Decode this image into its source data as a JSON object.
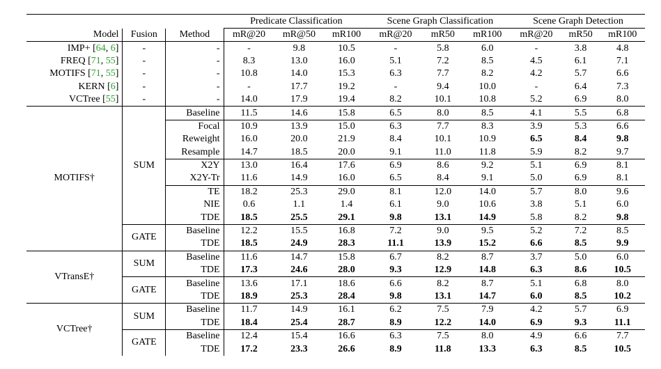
{
  "header": {
    "groups": [
      "Predicate Classification",
      "Scene Graph Classification",
      "Scene Graph Detection"
    ],
    "columns": [
      "Model",
      "Fusion",
      "Method",
      "mR@20",
      "mR@50",
      "mR100",
      "mR@20",
      "mR50",
      "mR100",
      "mR@20",
      "mR50",
      "mR100"
    ]
  },
  "baselines": [
    {
      "model": "IMP+ [64, 6]",
      "fusion": "-",
      "method": "-",
      "values": [
        "-",
        "9.8",
        "10.5",
        "-",
        "5.8",
        "6.0",
        "-",
        "3.8",
        "4.8"
      ]
    },
    {
      "model": "FREQ [71, 55]",
      "fusion": "-",
      "method": "-",
      "values": [
        "8.3",
        "13.0",
        "16.0",
        "5.1",
        "7.2",
        "8.5",
        "4.5",
        "6.1",
        "7.1"
      ]
    },
    {
      "model": "MOTIFS [71, 55]",
      "fusion": "-",
      "method": "-",
      "values": [
        "10.8",
        "14.0",
        "15.3",
        "6.3",
        "7.7",
        "8.2",
        "4.2",
        "5.7",
        "6.6"
      ]
    },
    {
      "model": "KERN [6]",
      "fusion": "-",
      "method": "-",
      "values": [
        "-",
        "17.7",
        "19.2",
        "-",
        "9.4",
        "10.0",
        "-",
        "6.4",
        "7.3"
      ]
    },
    {
      "model": "VCTree [55]",
      "fusion": "-",
      "method": "-",
      "values": [
        "14.0",
        "17.9",
        "19.4",
        "8.2",
        "10.1",
        "10.8",
        "5.2",
        "6.9",
        "8.0"
      ]
    }
  ],
  "groups": [
    {
      "model": "MOTIFS†",
      "fusions": [
        {
          "fusion": "SUM",
          "blocks": [
            [
              {
                "method": "Baseline",
                "values": [
                  "11.5",
                  "14.6",
                  "15.8",
                  "6.5",
                  "8.0",
                  "8.5",
                  "4.1",
                  "5.5",
                  "6.8"
                ],
                "bold": []
              }
            ],
            [
              {
                "method": "Focal",
                "values": [
                  "10.9",
                  "13.9",
                  "15.0",
                  "6.3",
                  "7.7",
                  "8.3",
                  "3.9",
                  "5.3",
                  "6.6"
                ],
                "bold": []
              },
              {
                "method": "Reweight",
                "values": [
                  "16.0",
                  "20.0",
                  "21.9",
                  "8.4",
                  "10.1",
                  "10.9",
                  "6.5",
                  "8.4",
                  "9.8"
                ],
                "bold": [
                  6,
                  7,
                  8
                ]
              },
              {
                "method": "Resample",
                "values": [
                  "14.7",
                  "18.5",
                  "20.0",
                  "9.1",
                  "11.0",
                  "11.8",
                  "5.9",
                  "8.2",
                  "9.7"
                ],
                "bold": []
              }
            ],
            [
              {
                "method": "X2Y",
                "values": [
                  "13.0",
                  "16.4",
                  "17.6",
                  "6.9",
                  "8.6",
                  "9.2",
                  "5.1",
                  "6.9",
                  "8.1"
                ],
                "bold": []
              },
              {
                "method": "X2Y-Tr",
                "values": [
                  "11.6",
                  "14.9",
                  "16.0",
                  "6.5",
                  "8.4",
                  "9.1",
                  "5.0",
                  "6.9",
                  "8.1"
                ],
                "bold": []
              }
            ],
            [
              {
                "method": "TE",
                "values": [
                  "18.2",
                  "25.3",
                  "29.0",
                  "8.1",
                  "12.0",
                  "14.0",
                  "5.7",
                  "8.0",
                  "9.6"
                ],
                "bold": []
              },
              {
                "method": "NIE",
                "values": [
                  "0.6",
                  "1.1",
                  "1.4",
                  "6.1",
                  "9.0",
                  "10.6",
                  "3.8",
                  "5.1",
                  "6.0"
                ],
                "bold": []
              },
              {
                "method": "TDE",
                "values": [
                  "18.5",
                  "25.5",
                  "29.1",
                  "9.8",
                  "13.1",
                  "14.9",
                  "5.8",
                  "8.2",
                  "9.8"
                ],
                "bold": [
                  0,
                  1,
                  2,
                  3,
                  4,
                  5,
                  8
                ]
              }
            ]
          ]
        },
        {
          "fusion": "GATE",
          "blocks": [
            [
              {
                "method": "Baseline",
                "values": [
                  "12.2",
                  "15.5",
                  "16.8",
                  "7.2",
                  "9.0",
                  "9.5",
                  "5.2",
                  "7.2",
                  "8.5"
                ],
                "bold": []
              },
              {
                "method": "TDE",
                "values": [
                  "18.5",
                  "24.9",
                  "28.3",
                  "11.1",
                  "13.9",
                  "15.2",
                  "6.6",
                  "8.5",
                  "9.9"
                ],
                "bold": [
                  0,
                  1,
                  2,
                  3,
                  4,
                  5,
                  6,
                  7,
                  8
                ]
              }
            ]
          ]
        }
      ]
    },
    {
      "model": "VTransE†",
      "fusions": [
        {
          "fusion": "SUM",
          "blocks": [
            [
              {
                "method": "Baseline",
                "values": [
                  "11.6",
                  "14.7",
                  "15.8",
                  "6.7",
                  "8.2",
                  "8.7",
                  "3.7",
                  "5.0",
                  "6.0"
                ],
                "bold": []
              },
              {
                "method": "TDE",
                "values": [
                  "17.3",
                  "24.6",
                  "28.0",
                  "9.3",
                  "12.9",
                  "14.8",
                  "6.3",
                  "8.6",
                  "10.5"
                ],
                "bold": [
                  0,
                  1,
                  2,
                  3,
                  4,
                  5,
                  6,
                  7,
                  8
                ]
              }
            ]
          ]
        },
        {
          "fusion": "GATE",
          "blocks": [
            [
              {
                "method": "Baseline",
                "values": [
                  "13.6",
                  "17.1",
                  "18.6",
                  "6.6",
                  "8.2",
                  "8.7",
                  "5.1",
                  "6.8",
                  "8.0"
                ],
                "bold": []
              },
              {
                "method": "TDE",
                "values": [
                  "18.9",
                  "25.3",
                  "28.4",
                  "9.8",
                  "13.1",
                  "14.7",
                  "6.0",
                  "8.5",
                  "10.2"
                ],
                "bold": [
                  0,
                  1,
                  2,
                  3,
                  4,
                  5,
                  6,
                  7,
                  8
                ]
              }
            ]
          ]
        }
      ]
    },
    {
      "model": "VCTree†",
      "fusions": [
        {
          "fusion": "SUM",
          "blocks": [
            [
              {
                "method": "Baseline",
                "values": [
                  "11.7",
                  "14.9",
                  "16.1",
                  "6.2",
                  "7.5",
                  "7.9",
                  "4.2",
                  "5.7",
                  "6.9"
                ],
                "bold": []
              },
              {
                "method": "TDE",
                "values": [
                  "18.4",
                  "25.4",
                  "28.7",
                  "8.9",
                  "12.2",
                  "14.0",
                  "6.9",
                  "9.3",
                  "11.1"
                ],
                "bold": [
                  0,
                  1,
                  2,
                  3,
                  4,
                  5,
                  6,
                  7,
                  8
                ]
              }
            ]
          ]
        },
        {
          "fusion": "GATE",
          "blocks": [
            [
              {
                "method": "Baseline",
                "values": [
                  "12.4",
                  "15.4",
                  "16.6",
                  "6.3",
                  "7.5",
                  "8.0",
                  "4.9",
                  "6.6",
                  "7.7"
                ],
                "bold": []
              },
              {
                "method": "TDE",
                "values": [
                  "17.2",
                  "23.3",
                  "26.6",
                  "8.9",
                  "11.8",
                  "13.3",
                  "6.3",
                  "8.5",
                  "10.5"
                ],
                "bold": [
                  0,
                  1,
                  2,
                  3,
                  4,
                  5,
                  6,
                  7,
                  8
                ]
              }
            ]
          ]
        }
      ]
    }
  ]
}
